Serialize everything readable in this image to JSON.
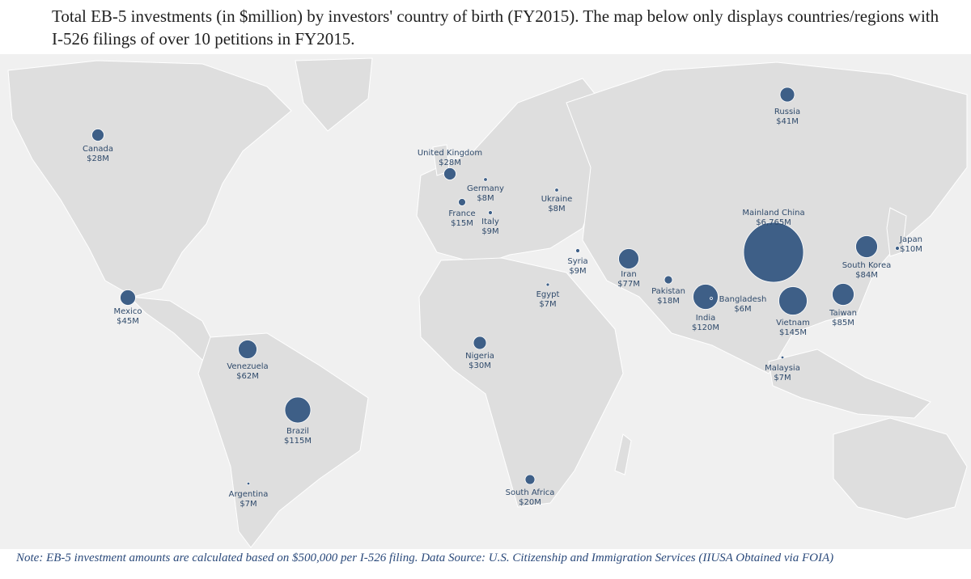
{
  "title": "Total EB-5 investments (in $million) by investors' country of birth (FY2015). The map below only displays countries/regions with I-526 filings of over 10 petitions in FY2015.",
  "note": "Note: EB-5 investment amounts are calculated based on $500,000 per I-526 filing. Data Source: U.S. Citizenship and Immigration Services (IIUSA Obtained via FOIA)",
  "colors": {
    "bubble": "#3e5f87",
    "label": "#2f4a6b",
    "land": "#dedede",
    "ocean": "#f0f0f0",
    "note": "#2b4a7b"
  },
  "map_data": {
    "unit": "$million",
    "points": [
      {
        "name": "Canada",
        "amount": "$28M",
        "value": 28
      },
      {
        "name": "Mexico",
        "amount": "$45M",
        "value": 45
      },
      {
        "name": "Venezuela",
        "amount": "$62M",
        "value": 62
      },
      {
        "name": "Brazil",
        "amount": "$115M",
        "value": 115
      },
      {
        "name": "Argentina",
        "amount": "$7M",
        "value": 7
      },
      {
        "name": "United Kingdom",
        "amount": "$28M",
        "value": 28
      },
      {
        "name": "France",
        "amount": "$15M",
        "value": 15
      },
      {
        "name": "Germany",
        "amount": "$8M",
        "value": 8
      },
      {
        "name": "Italy",
        "amount": "$9M",
        "value": 9
      },
      {
        "name": "Ukraine",
        "amount": "$8M",
        "value": 8
      },
      {
        "name": "Syria",
        "amount": "$9M",
        "value": 9
      },
      {
        "name": "Egypt",
        "amount": "$7M",
        "value": 7
      },
      {
        "name": "Nigeria",
        "amount": "$30M",
        "value": 30
      },
      {
        "name": "South Africa",
        "amount": "$20M",
        "value": 20
      },
      {
        "name": "Iran",
        "amount": "$77M",
        "value": 77
      },
      {
        "name": "Pakistan",
        "amount": "$18M",
        "value": 18
      },
      {
        "name": "India",
        "amount": "$120M",
        "value": 120
      },
      {
        "name": "Bangladesh",
        "amount": "$6M",
        "value": 6
      },
      {
        "name": "Russia",
        "amount": "$41M",
        "value": 41
      },
      {
        "name": "Mainland China",
        "amount": "$6,765M",
        "value": 6765
      },
      {
        "name": "South Korea",
        "amount": "$84M",
        "value": 84
      },
      {
        "name": "Japan",
        "amount": "$10M",
        "value": 10
      },
      {
        "name": "Taiwan",
        "amount": "$85M",
        "value": 85
      },
      {
        "name": "Vietnam",
        "amount": "$145M",
        "value": 145
      },
      {
        "name": "Malaysia",
        "amount": "$7M",
        "value": 7
      }
    ]
  }
}
